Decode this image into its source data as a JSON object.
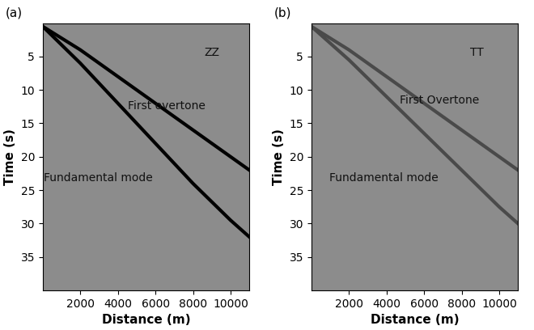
{
  "chart_data": [
    {
      "type": "line",
      "title": "(a)",
      "x_label": "Distance (m)",
      "y_label": "Time (s)",
      "annotations": [
        "ZZ",
        "First overtone",
        "Fundamental mode"
      ],
      "xlim": [
        0,
        11000
      ],
      "xticks": [
        2000,
        4000,
        6000,
        8000,
        10000
      ],
      "ylim": [
        40,
        0
      ],
      "yticks": [
        5,
        10,
        15,
        20,
        25,
        30,
        35
      ],
      "grid": false,
      "series": [
        {
          "color": "#000000",
          "x": [
            0,
            2000,
            4000,
            6000,
            8000,
            10000,
            11000
          ],
          "values": [
            0.5,
            4,
            8,
            12,
            16,
            20,
            22
          ]
        },
        {
          "color": "#000000",
          "x": [
            0,
            2000,
            4000,
            6000,
            8000,
            10000,
            11000
          ],
          "values": [
            0.5,
            6,
            12,
            18,
            24,
            29.5,
            32
          ]
        }
      ]
    },
    {
      "type": "line",
      "title": "(b)",
      "x_label": "Distance (m)",
      "y_label": "Time (s)",
      "annotations": [
        "TT",
        "First Overtone",
        "Fundamental mode"
      ],
      "xlim": [
        0,
        11000
      ],
      "xticks": [
        2000,
        4000,
        6000,
        8000,
        10000
      ],
      "ylim": [
        40,
        0
      ],
      "yticks": [
        5,
        10,
        15,
        20,
        25,
        30,
        35
      ],
      "grid": false,
      "series": [
        {
          "color": "#4a4a4a",
          "x": [
            0,
            2000,
            4000,
            6000,
            8000,
            10000,
            11000
          ],
          "values": [
            0.5,
            4,
            8,
            12,
            16,
            20,
            22
          ]
        },
        {
          "color": "#4a4a4a",
          "x": [
            0,
            2000,
            4000,
            6000,
            8000,
            10000,
            11000
          ],
          "values": [
            0.5,
            5.5,
            11,
            16.5,
            22,
            27.5,
            30
          ]
        }
      ]
    }
  ]
}
